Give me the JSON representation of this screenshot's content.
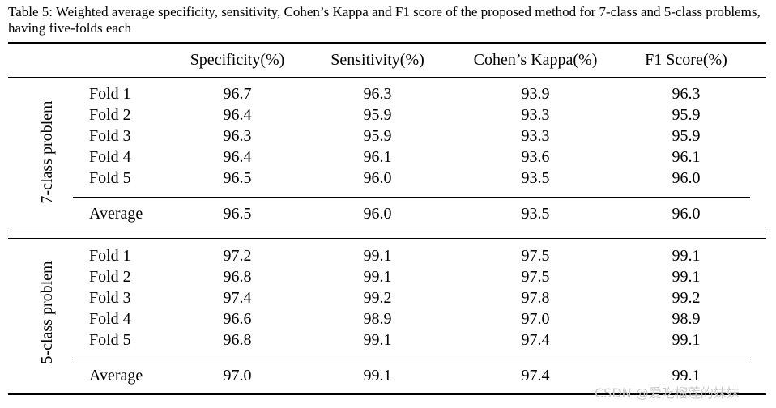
{
  "caption": "Table 5: Weighted average specificity, sensitivity, Cohen’s Kappa and F1 score of the proposed method for 7-class and 5-class problems, having five-folds each",
  "columns": [
    "Specificity(%)",
    "Sensitivity(%)",
    "Cohen’s Kappa(%)",
    "F1 Score(%)"
  ],
  "groups": [
    {
      "label": "7-class problem",
      "rows": [
        {
          "label": "Fold 1",
          "values": [
            "96.7",
            "96.3",
            "93.9",
            "96.3"
          ]
        },
        {
          "label": "Fold 2",
          "values": [
            "96.4",
            "95.9",
            "93.3",
            "95.9"
          ]
        },
        {
          "label": "Fold 3",
          "values": [
            "96.3",
            "95.9",
            "93.3",
            "95.9"
          ]
        },
        {
          "label": "Fold 4",
          "values": [
            "96.4",
            "96.1",
            "93.6",
            "96.1"
          ]
        },
        {
          "label": "Fold 5",
          "values": [
            "96.5",
            "96.0",
            "93.5",
            "96.0"
          ]
        }
      ],
      "average": {
        "label": "Average",
        "values": [
          "96.5",
          "96.0",
          "93.5",
          "96.0"
        ]
      }
    },
    {
      "label": "5-class problem",
      "rows": [
        {
          "label": "Fold 1",
          "values": [
            "97.2",
            "99.1",
            "97.5",
            "99.1"
          ]
        },
        {
          "label": "Fold 2",
          "values": [
            "96.8",
            "99.1",
            "97.5",
            "99.1"
          ]
        },
        {
          "label": "Fold 3",
          "values": [
            "97.4",
            "99.2",
            "97.8",
            "99.2"
          ]
        },
        {
          "label": "Fold 4",
          "values": [
            "96.6",
            "98.9",
            "97.0",
            "98.9"
          ]
        },
        {
          "label": "Fold 5",
          "values": [
            "96.8",
            "99.1",
            "97.4",
            "99.1"
          ]
        }
      ],
      "average": {
        "label": "Average",
        "values": [
          "97.0",
          "99.1",
          "97.4",
          "99.1"
        ]
      }
    }
  ],
  "watermark": "CSDN @爱吃榴莲的妹妹"
}
